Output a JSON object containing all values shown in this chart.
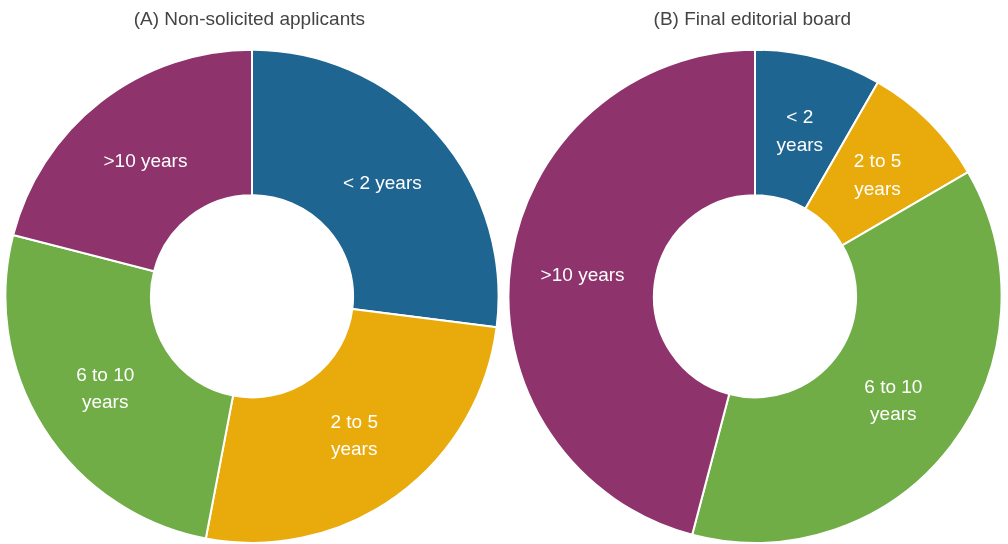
{
  "chart_data": [
    {
      "type": "donut",
      "title": "(A)  Non-solicited applicants",
      "categories": [
        "< 2 years",
        "2 to 5\nyears",
        "6 to 10\nyears",
        ">10 years"
      ],
      "values": [
        27,
        26,
        26,
        21
      ],
      "colors": [
        "#1f6591",
        "#e9ab0c",
        "#70ad47",
        "#8e336c"
      ]
    },
    {
      "type": "donut",
      "title": "(B)  Final editorial board",
      "categories": [
        "< 2\nyears",
        "2 to 5\nyears",
        "6 to 10\nyears",
        ">10 years"
      ],
      "values": [
        8.3,
        8.3,
        37.5,
        45.9
      ],
      "colors": [
        "#1f6591",
        "#e9ab0c",
        "#70ad47",
        "#8e336c"
      ]
    }
  ]
}
